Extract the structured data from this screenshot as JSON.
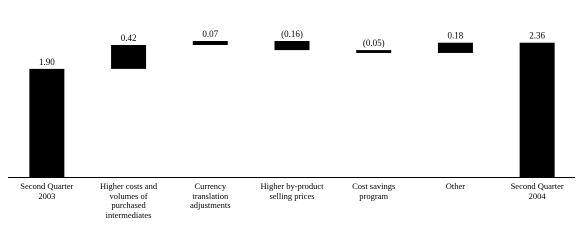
{
  "chart_data": {
    "type": "waterfall",
    "categories": [
      "Second Quarter\n2003",
      "Higher costs and\nvolumes of\npurchased\nintermediates",
      "Currency\ntranslation\nadjustments",
      "Higher by-product\nselling prices",
      "Cost savings\nprogram",
      "Other",
      "Second Quarter\n2004"
    ],
    "values": [
      1.9,
      0.42,
      0.07,
      -0.16,
      -0.05,
      0.18,
      2.36
    ],
    "value_labels": [
      "1.90",
      "0.42",
      "0.07",
      "(0.16)",
      "(0.05)",
      "0.18",
      "2.36"
    ],
    "color": "#000000"
  }
}
